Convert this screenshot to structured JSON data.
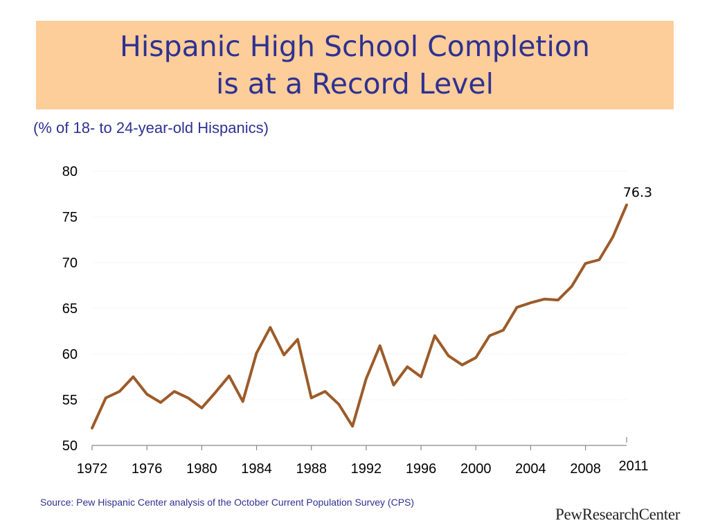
{
  "title": {
    "line1": "Hispanic High School Completion",
    "line2": "is at a Record Level"
  },
  "subtitle": "(% of 18- to 24-year-old Hispanics)",
  "source": "Source: Pew Hispanic Center analysis of the October Current Population Survey (CPS)",
  "logo": {
    "part1": "Pew",
    "part2": "Research",
    "part3": "Center"
  },
  "colors": {
    "title_band": "#fdcd9a",
    "title_text": "#2e3192",
    "line": "#9c5b29"
  },
  "chart_data": {
    "type": "line",
    "title": "Hispanic High School Completion is at a Record Level",
    "ylabel": "",
    "xlabel": "",
    "ylim": [
      50,
      80
    ],
    "xlim": [
      1972,
      2011
    ],
    "yticks": [
      50,
      55,
      60,
      65,
      70,
      75,
      80
    ],
    "xticks": [
      "1972",
      "1976",
      "1980",
      "1984",
      "1988",
      "1992",
      "1996",
      "2000",
      "2004",
      "2008",
      "2011"
    ],
    "grid": true,
    "end_label": "76.3",
    "x": [
      1972,
      1973,
      1974,
      1975,
      1976,
      1977,
      1978,
      1979,
      1980,
      1981,
      1982,
      1983,
      1984,
      1985,
      1986,
      1987,
      1988,
      1989,
      1990,
      1991,
      1992,
      1993,
      1994,
      1995,
      1996,
      1997,
      1998,
      1999,
      2000,
      2001,
      2002,
      2003,
      2004,
      2005,
      2006,
      2007,
      2008,
      2009,
      2010,
      2011
    ],
    "values": [
      51.9,
      55.2,
      55.9,
      57.5,
      55.6,
      54.7,
      55.9,
      55.2,
      54.1,
      55.8,
      57.6,
      54.8,
      60.1,
      62.9,
      59.9,
      61.6,
      55.2,
      55.9,
      54.5,
      52.1,
      57.3,
      60.9,
      56.6,
      58.6,
      57.5,
      62.0,
      59.8,
      58.8,
      59.6,
      62.0,
      62.6,
      65.1,
      65.6,
      66.0,
      65.9,
      67.4,
      69.9,
      70.3,
      72.8,
      76.3
    ]
  }
}
